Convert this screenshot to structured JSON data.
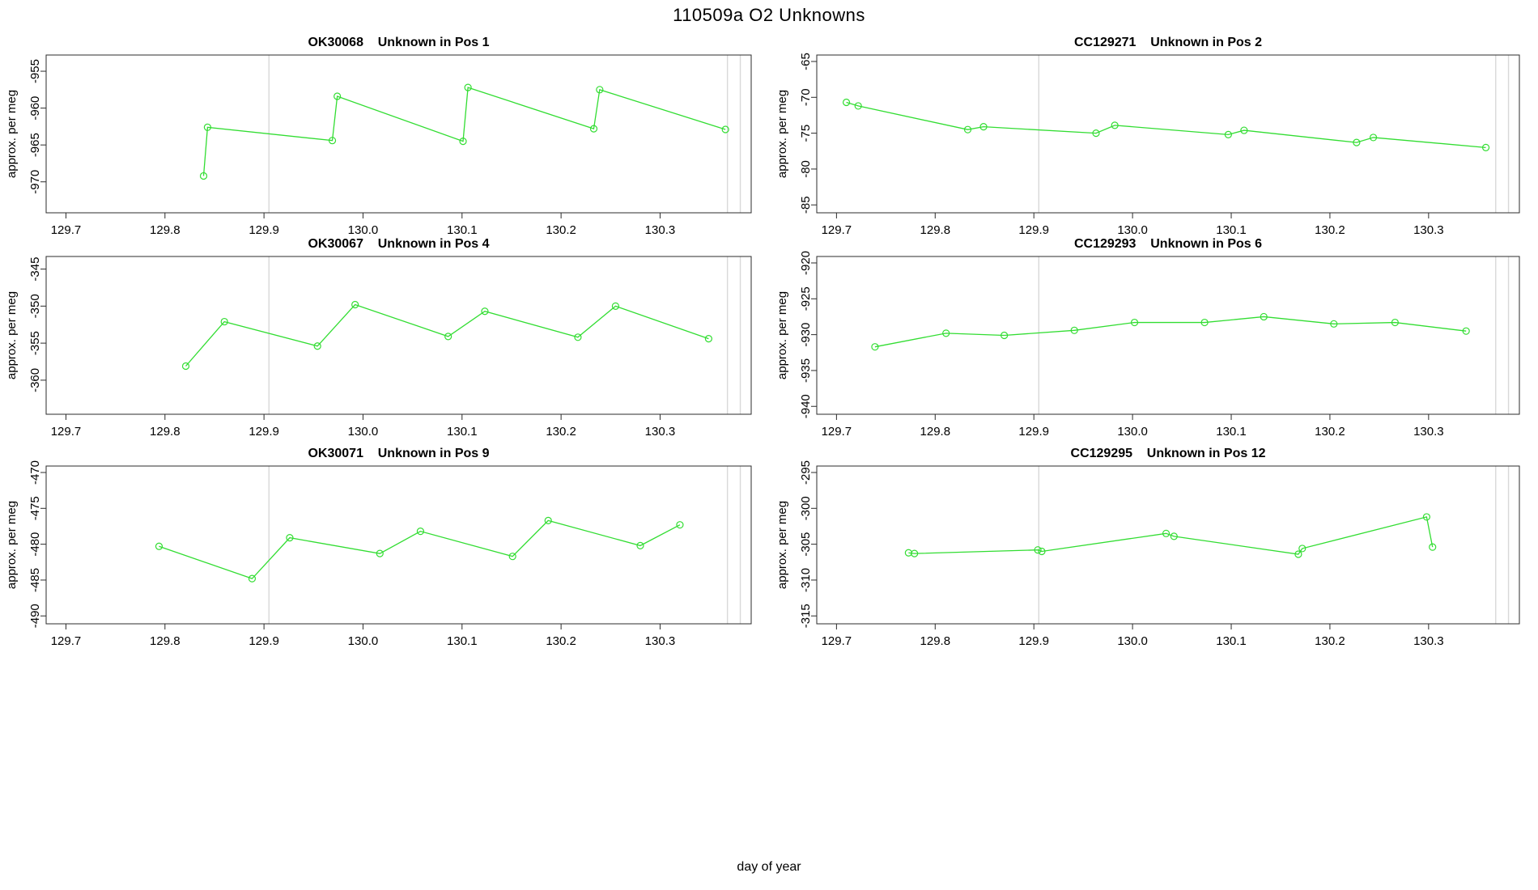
{
  "title": "110509a  O2 Unknowns",
  "xlabel": "day of year",
  "ylabel": "approx. per meg",
  "colors": {
    "series": "#32dd32",
    "refline": "#d8d8d8",
    "frame": "#2b2b2b",
    "text": "#000000",
    "background": "#ffffff"
  },
  "chart_data": [
    {
      "type": "line",
      "title_sample": "OK30068",
      "title_label": "Unknown in Pos 1",
      "ylabel": "approx. per meg",
      "marker": "open-circle",
      "legend": "none",
      "grid": "off",
      "xlim": [
        129.68,
        130.392
      ],
      "xticks": [
        129.7,
        129.8,
        129.9,
        130.0,
        130.1,
        130.2,
        130.3
      ],
      "ylim": [
        -974.2,
        -952.8
      ],
      "yticks": [
        -970,
        -965,
        -960,
        -955
      ],
      "vlines": [
        129.905,
        130.368,
        130.381
      ],
      "x": [
        129.839,
        129.843,
        129.969,
        129.974,
        130.101,
        130.106,
        130.233,
        130.239,
        130.366
      ],
      "y": [
        -969.2,
        -962.6,
        -964.4,
        -958.4,
        -964.5,
        -957.2,
        -962.8,
        -957.5,
        -962.9
      ]
    },
    {
      "type": "line",
      "title_sample": "CC129271",
      "title_label": "Unknown in Pos 2",
      "ylabel": "approx. per meg",
      "marker": "open-circle",
      "legend": "none",
      "grid": "off",
      "xlim": [
        129.68,
        130.392
      ],
      "xticks": [
        129.7,
        129.8,
        129.9,
        130.0,
        130.1,
        130.2,
        130.3
      ],
      "ylim": [
        -86.1,
        -64.1
      ],
      "yticks": [
        -85,
        -80,
        -75,
        -70,
        -65
      ],
      "vlines": [
        129.905,
        130.368,
        130.381
      ],
      "x": [
        129.71,
        129.722,
        129.833,
        129.849,
        129.963,
        129.982,
        130.097,
        130.113,
        130.227,
        130.244,
        130.358
      ],
      "y": [
        -70.7,
        -71.2,
        -74.5,
        -74.1,
        -75.0,
        -73.9,
        -75.2,
        -74.6,
        -76.3,
        -75.6,
        -77.0
      ]
    },
    {
      "type": "line",
      "title_sample": "OK30067",
      "title_label": "Unknown in Pos 4",
      "ylabel": "approx. per meg",
      "marker": "open-circle",
      "legend": "none",
      "grid": "off",
      "xlim": [
        129.68,
        130.392
      ],
      "xticks": [
        129.7,
        129.8,
        129.9,
        130.0,
        130.1,
        130.2,
        130.3
      ],
      "ylim": [
        -364.6,
        -343.3
      ],
      "yticks": [
        -360,
        -355,
        -350,
        -345
      ],
      "vlines": [
        129.905,
        130.368,
        130.381
      ],
      "x": [
        129.821,
        129.86,
        129.954,
        129.992,
        130.086,
        130.123,
        130.217,
        130.255,
        130.349
      ],
      "y": [
        -358.1,
        -352.1,
        -355.4,
        -349.8,
        -354.1,
        -350.7,
        -354.2,
        -350.0,
        -354.4
      ]
    },
    {
      "type": "line",
      "title_sample": "CC129293",
      "title_label": "Unknown in Pos 6",
      "ylabel": "approx. per meg",
      "marker": "open-circle",
      "legend": "none",
      "grid": "off",
      "xlim": [
        129.68,
        130.392
      ],
      "xticks": [
        129.7,
        129.8,
        129.9,
        130.0,
        130.1,
        130.2,
        130.3
      ],
      "ylim": [
        -941.1,
        -919.1
      ],
      "yticks": [
        -940,
        -935,
        -930,
        -925,
        -920
      ],
      "vlines": [
        129.905,
        130.368,
        130.381
      ],
      "x": [
        129.739,
        129.811,
        129.87,
        129.941,
        130.002,
        130.073,
        130.133,
        130.204,
        130.266,
        130.338
      ],
      "y": [
        -931.7,
        -929.8,
        -930.1,
        -929.4,
        -928.3,
        -928.3,
        -927.5,
        -928.5,
        -928.3,
        -929.5
      ]
    },
    {
      "type": "line",
      "title_sample": "OK30071",
      "title_label": "Unknown in Pos 9",
      "ylabel": "approx. per meg",
      "marker": "open-circle",
      "legend": "none",
      "grid": "off",
      "xlim": [
        129.68,
        130.392
      ],
      "xticks": [
        129.7,
        129.8,
        129.9,
        130.0,
        130.1,
        130.2,
        130.3
      ],
      "ylim": [
        -491.1,
        -469.1
      ],
      "yticks": [
        -490,
        -485,
        -480,
        -475,
        -470
      ],
      "vlines": [
        129.905,
        130.368,
        130.381
      ],
      "x": [
        129.794,
        129.888,
        129.926,
        130.017,
        130.058,
        130.151,
        130.187,
        130.28,
        130.32
      ],
      "y": [
        -480.3,
        -484.8,
        -479.1,
        -481.3,
        -478.2,
        -481.7,
        -476.7,
        -480.2,
        -477.3
      ]
    },
    {
      "type": "line",
      "title_sample": "CC129295",
      "title_label": "Unknown in Pos 12",
      "ylabel": "approx. per meg",
      "marker": "open-circle",
      "legend": "none",
      "grid": "off",
      "xlim": [
        129.68,
        130.392
      ],
      "xticks": [
        129.7,
        129.8,
        129.9,
        130.0,
        130.1,
        130.2,
        130.3
      ],
      "ylim": [
        -316.1,
        -294.1
      ],
      "yticks": [
        -315,
        -310,
        -305,
        -300,
        -295
      ],
      "vlines": [
        129.905,
        130.368,
        130.381
      ],
      "x": [
        129.773,
        129.779,
        129.904,
        129.908,
        130.034,
        130.042,
        130.168,
        130.172,
        130.298,
        130.304
      ],
      "y": [
        -306.2,
        -306.3,
        -305.8,
        -306.0,
        -303.5,
        -303.9,
        -306.4,
        -305.6,
        -301.2,
        -305.4
      ]
    }
  ]
}
